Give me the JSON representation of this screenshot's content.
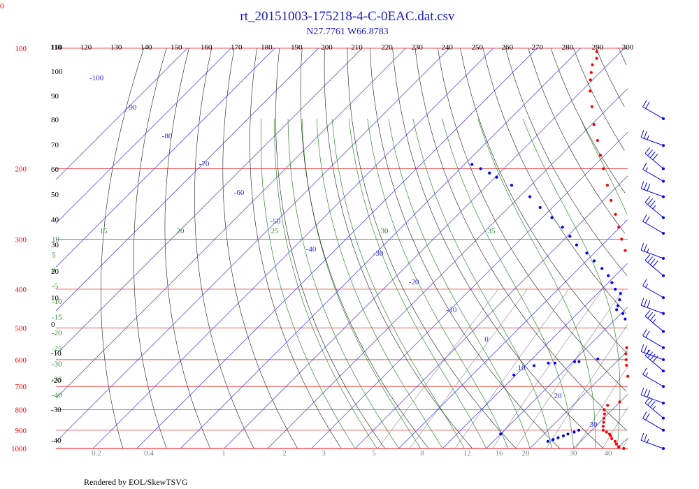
{
  "corner_marker": "0",
  "chart_data": {
    "type": "scatter",
    "title": "rt_20151003-175218-4-C-0EAC.dat.csv",
    "subtitle": "N27.7761 W66.8783",
    "footer": "Rendered by EOL/SkewTSVG",
    "pressure_labels": [
      "100",
      "200",
      "300",
      "400",
      "500",
      "600",
      "700",
      "800",
      "900",
      "1000"
    ],
    "pressure_levels": [
      100,
      200,
      300,
      400,
      500,
      600,
      700,
      800,
      900,
      1000
    ],
    "temperature_axis_labels": [
      "110",
      "120",
      "130",
      "140",
      "150",
      "160",
      "170",
      "180",
      "190",
      "200",
      "210",
      "220",
      "230",
      "240",
      "250",
      "260",
      "270",
      "280",
      "290",
      "300"
    ],
    "isotherm_labels": [
      "-100",
      "-90",
      "-80",
      "-70",
      "-60",
      "-50",
      "-40",
      "-30",
      "-20",
      "-10",
      "0",
      "10",
      "20",
      "30"
    ],
    "height_labels": [
      "110",
      "100",
      "90",
      "80",
      "70",
      "60",
      "50",
      "40",
      "30",
      "20",
      "10",
      "0",
      "-10",
      "-20",
      "-30",
      "-40"
    ],
    "moist_adiabat_labels": [
      "15",
      "20",
      "25",
      "30",
      "35"
    ],
    "left_moist_labels": [
      "10",
      "5",
      "0",
      "-5",
      "-10",
      "-15",
      "-20",
      "-25",
      "-30",
      "-35",
      "-40"
    ],
    "mixing_ratio_labels": [
      "0.2",
      "0.4",
      "1",
      "2",
      "3",
      "5",
      "8",
      "12",
      "16",
      "20",
      "30",
      "40"
    ],
    "series": [
      {
        "role": "temperature",
        "color": "#ff0000",
        "points": [
          [
            1000,
            21.5
          ],
          [
            990,
            20.0
          ],
          [
            975,
            18.8
          ],
          [
            960,
            17.9
          ],
          [
            945,
            16.5
          ],
          [
            930,
            15.6
          ],
          [
            920,
            14.9
          ],
          [
            910,
            13.8
          ],
          [
            900,
            12.6
          ],
          [
            880,
            11.7
          ],
          [
            860,
            10.9
          ],
          [
            840,
            10.0
          ],
          [
            820,
            9.2
          ],
          [
            800,
            8.1
          ],
          [
            780,
            7.9
          ],
          [
            765,
            9.9
          ],
          [
            750,
            12.2
          ],
          [
            735,
            12.5
          ],
          [
            720,
            11.5
          ],
          [
            700,
            9.6
          ],
          [
            680,
            7.4
          ],
          [
            660,
            5.9
          ],
          [
            640,
            4.9
          ],
          [
            620,
            3.1
          ],
          [
            600,
            1.7
          ],
          [
            580,
            0.3
          ],
          [
            560,
            -0.9
          ],
          [
            540,
            -1.8
          ],
          [
            520,
            -3.2
          ],
          [
            500,
            -4.8
          ],
          [
            480,
            -5.9
          ],
          [
            460,
            -7.3
          ],
          [
            440,
            -8.8
          ],
          [
            420,
            -10.6
          ],
          [
            400,
            -13.2
          ],
          [
            380,
            -15.5
          ],
          [
            360,
            -18.0
          ],
          [
            340,
            -20.4
          ],
          [
            320,
            -23.5
          ],
          [
            300,
            -26.9
          ],
          [
            280,
            -30.3
          ],
          [
            260,
            -34.0
          ],
          [
            240,
            -38.2
          ],
          [
            220,
            -42.5
          ],
          [
            200,
            -47.2
          ],
          [
            185,
            -51.0
          ],
          [
            170,
            -55.0
          ],
          [
            155,
            -59.5
          ],
          [
            140,
            -64.0
          ],
          [
            128,
            -68.0
          ],
          [
            120,
            -70.5
          ],
          [
            115,
            -72.0
          ],
          [
            110,
            -73.5
          ],
          [
            106,
            -74.0
          ],
          [
            102,
            -75.5
          ],
          [
            98,
            -76.3
          ],
          [
            95,
            -76.5
          ],
          [
            92,
            -77.8
          ],
          [
            89,
            -79.2
          ],
          [
            87,
            -80.0
          ],
          [
            85,
            -80.0
          ],
          [
            82,
            -82.0
          ],
          [
            80,
            -83.0
          ],
          [
            78,
            -84.0
          ],
          [
            76,
            -84.5
          ],
          [
            74,
            -85.0
          ],
          [
            72,
            -86.0
          ],
          [
            70,
            -87.0
          ]
        ]
      },
      {
        "role": "dewpoint",
        "color": "#0000ff",
        "points": [
          [
            900,
            7.0
          ],
          [
            910,
            6.4
          ],
          [
            920,
            5.4
          ],
          [
            930,
            4.8
          ],
          [
            940,
            4.0
          ],
          [
            950,
            3.3
          ],
          [
            960,
            2.5
          ],
          [
            600,
            4.5
          ],
          [
            590,
            3.8
          ],
          [
            570,
            3.2
          ],
          [
            550,
            2.6
          ],
          [
            540,
            2.2
          ],
          [
            530,
            1.5
          ],
          [
            520,
            0.3
          ],
          [
            510,
            -1.5
          ],
          [
            500,
            -4.4
          ],
          [
            490,
            -5.5
          ],
          [
            475,
            -7.8
          ],
          [
            460,
            -9.6
          ],
          [
            450,
            -11.9
          ],
          [
            440,
            -12.5
          ],
          [
            425,
            -13.5
          ],
          [
            410,
            -14.7
          ],
          [
            400,
            -16.9
          ],
          [
            385,
            -19.2
          ],
          [
            370,
            -21.6
          ],
          [
            355,
            -24.7
          ],
          [
            340,
            -28.2
          ],
          [
            325,
            -31.7
          ],
          [
            310,
            -35.9
          ],
          [
            295,
            -39.4
          ],
          [
            280,
            -43.2
          ],
          [
            265,
            -47.8
          ],
          [
            250,
            -52.8
          ],
          [
            235,
            -57.6
          ],
          [
            220,
            -64.4
          ],
          [
            210,
            -69.7
          ],
          [
            205,
            -72.3
          ],
          [
            200,
            -75.3
          ],
          [
            195,
            -78.3
          ]
        ]
      }
    ],
    "isolated_dewpoint_points": [
      [
        598,
        -4.9
      ],
      [
        607,
        -8.6
      ],
      [
        607,
        -9.6
      ],
      [
        612,
        -13.8
      ],
      [
        612,
        -15.3
      ],
      [
        621,
        -18.0
      ],
      [
        655,
        -20.5
      ],
      [
        920,
        -10.0
      ]
    ],
    "wind_barb_levels": [
      150,
      175,
      200,
      215,
      235,
      265,
      290,
      335,
      370,
      420,
      460,
      510,
      560,
      600,
      640,
      700,
      770,
      840,
      900,
      1000
    ],
    "ylim": [
      100,
      1000
    ],
    "xlabel": "",
    "ylabel": ""
  }
}
